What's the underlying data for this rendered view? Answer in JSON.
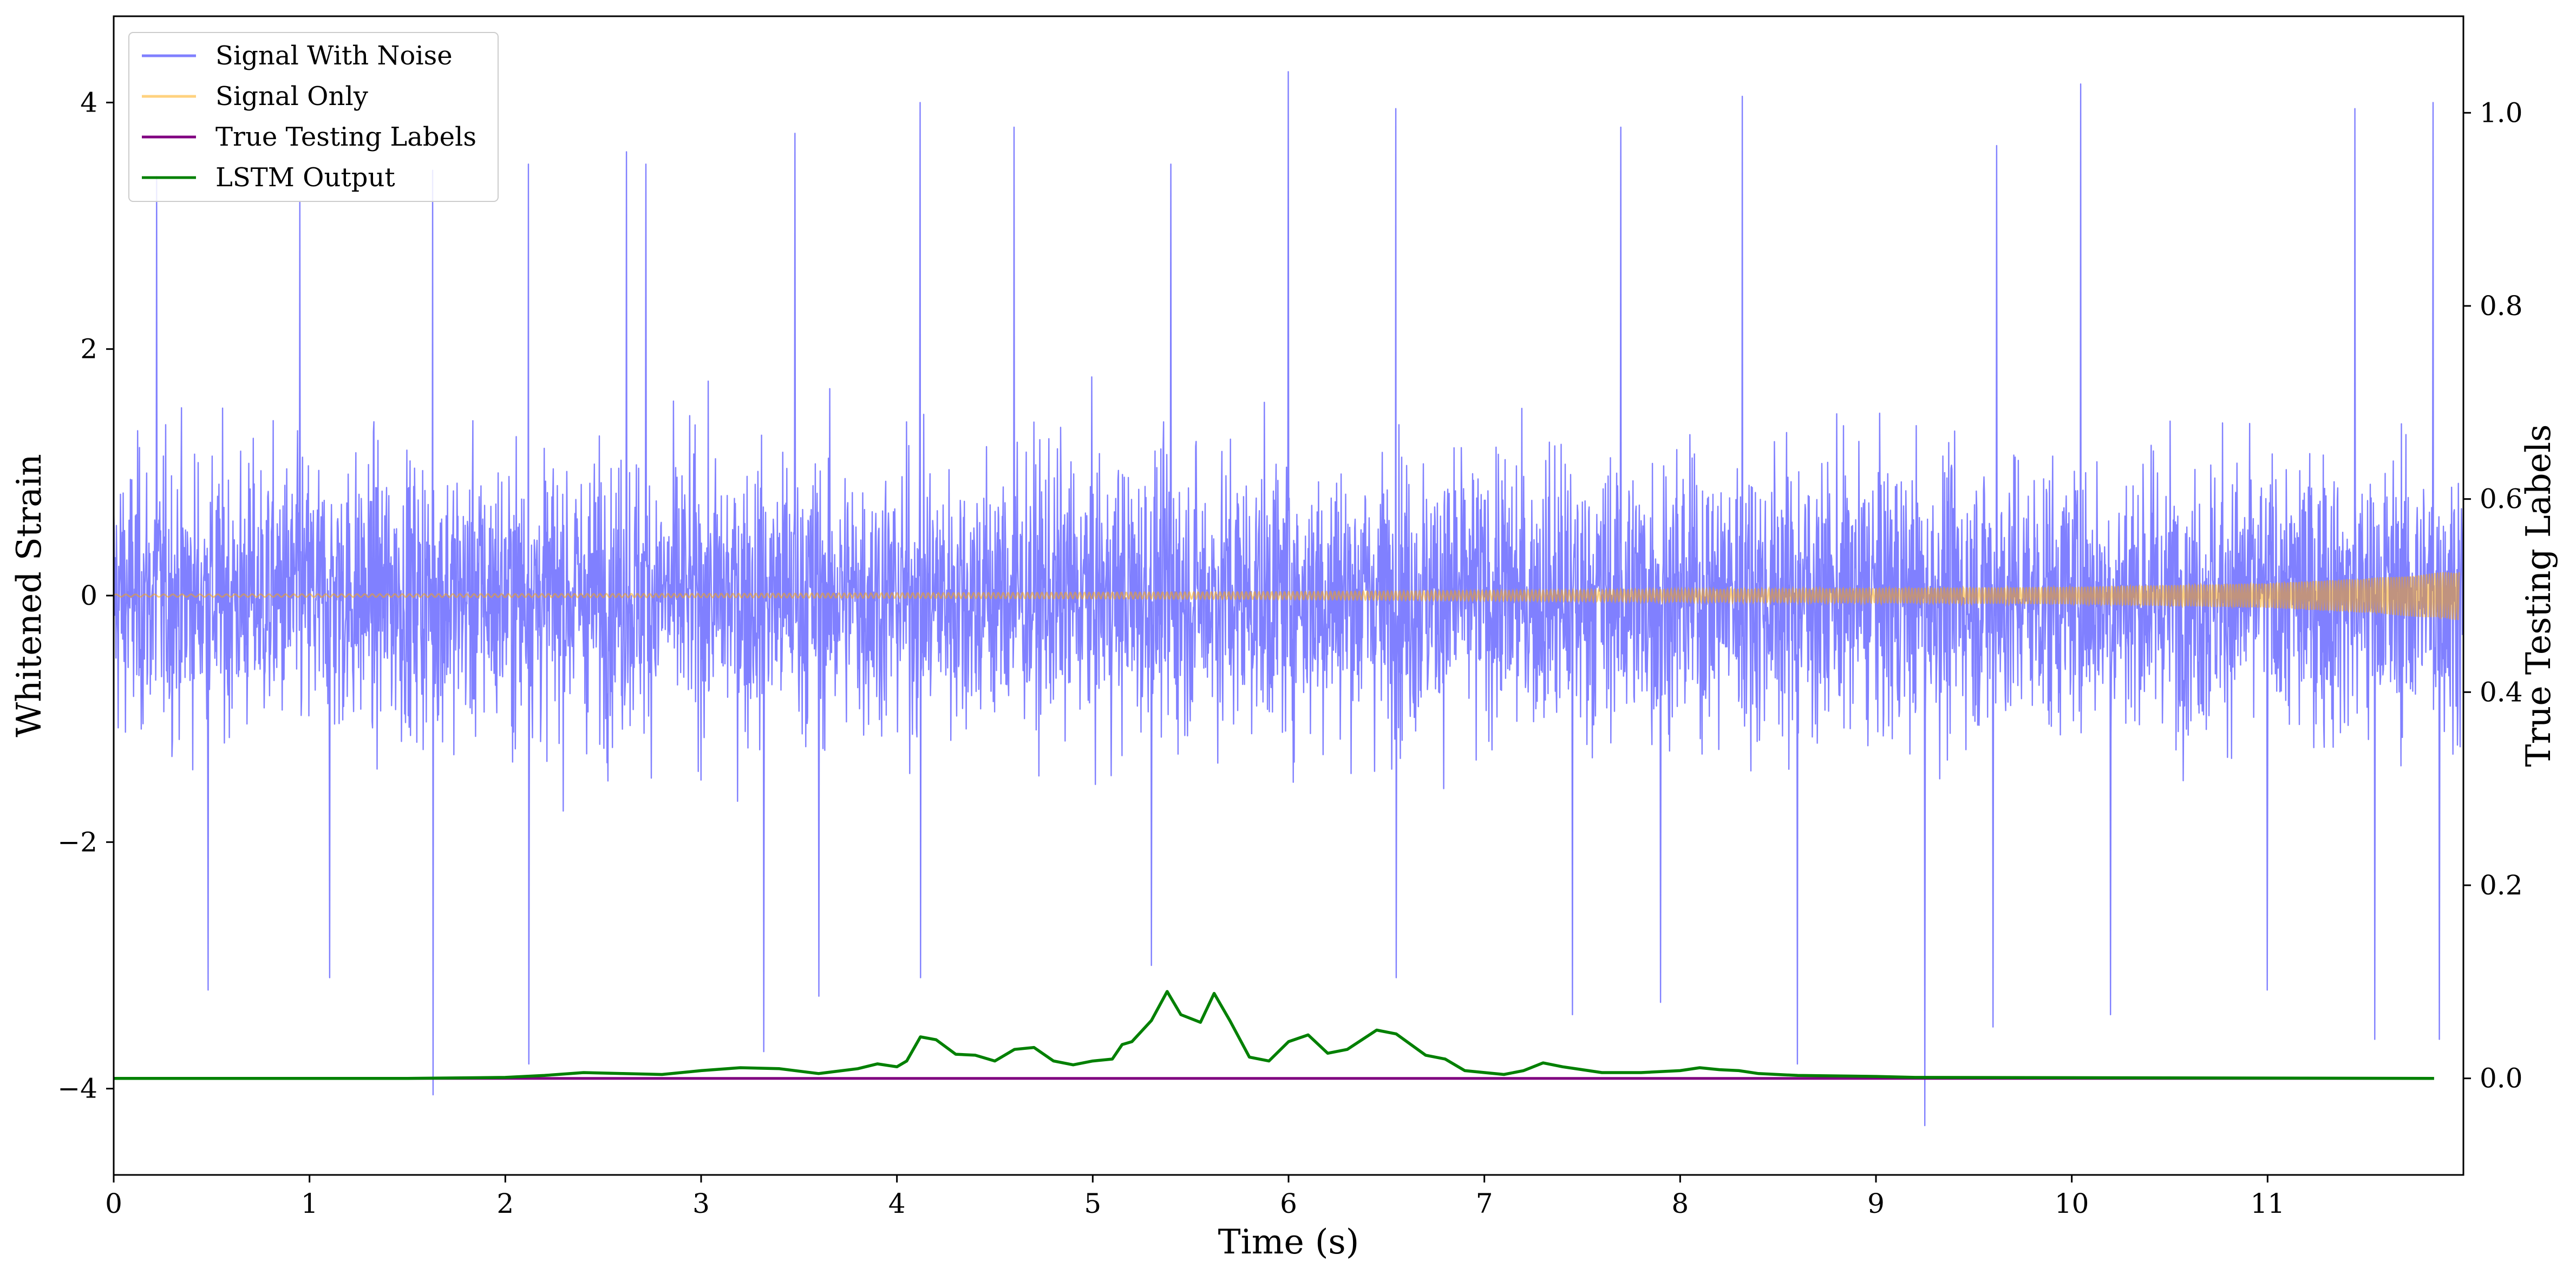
{
  "chart_data": {
    "type": "line",
    "xlabel": "Time (s)",
    "ylabel": "Whitened Strain",
    "y2label": "True Testing Labels",
    "xlim": [
      0,
      12
    ],
    "ylim": [
      -4.7,
      4.7
    ],
    "y2lim": [
      -0.1,
      1.1
    ],
    "xticks": [
      0,
      1,
      2,
      3,
      4,
      5,
      6,
      7,
      8,
      9,
      10,
      11
    ],
    "yticks": [
      -4,
      -2,
      0,
      2,
      4
    ],
    "y2ticks": [
      0.0,
      0.2,
      0.4,
      0.6,
      0.8,
      1.0
    ],
    "xtick_labels": [
      "0",
      "1",
      "2",
      "3",
      "4",
      "5",
      "6",
      "7",
      "8",
      "9",
      "10",
      "11"
    ],
    "ytick_labels": [
      "−4",
      "−2",
      "0",
      "2",
      "4"
    ],
    "y2tick_labels": [
      "0.0",
      "0.2",
      "0.4",
      "0.6",
      "0.8",
      "1.0"
    ],
    "grid": false,
    "legend_position": "top-left",
    "series": [
      {
        "name": "Signal With Noise",
        "axis": "left",
        "color": "#8080ff",
        "description_level": "noise amplitude ~ +/-1.5 typical, peaks to about +/-4.2",
        "peaks_max": [
          [
            0.22,
            3.4
          ],
          [
            0.95,
            3.2
          ],
          [
            1.63,
            3.45
          ],
          [
            2.12,
            3.5
          ],
          [
            2.62,
            3.6
          ],
          [
            2.72,
            3.5
          ],
          [
            3.48,
            3.75
          ],
          [
            4.12,
            4.0
          ],
          [
            4.6,
            3.8
          ],
          [
            5.4,
            3.5
          ],
          [
            6.0,
            4.25
          ],
          [
            6.55,
            3.95
          ],
          [
            7.7,
            3.8
          ],
          [
            8.32,
            4.05
          ],
          [
            9.62,
            3.65
          ],
          [
            10.05,
            4.15
          ],
          [
            11.45,
            3.95
          ],
          [
            11.85,
            4.0
          ]
        ],
        "peaks_min": [
          [
            0.48,
            -3.2
          ],
          [
            1.1,
            -3.1
          ],
          [
            1.63,
            -4.05
          ],
          [
            2.12,
            -3.8
          ],
          [
            3.32,
            -3.7
          ],
          [
            3.6,
            -3.25
          ],
          [
            4.12,
            -3.1
          ],
          [
            5.3,
            -3.0
          ],
          [
            6.55,
            -3.1
          ],
          [
            7.45,
            -3.4
          ],
          [
            7.9,
            -3.3
          ],
          [
            8.6,
            -3.8
          ],
          [
            9.25,
            -4.3
          ],
          [
            9.6,
            -3.5
          ],
          [
            10.2,
            -3.4
          ],
          [
            11.0,
            -3.2
          ],
          [
            11.55,
            -3.6
          ],
          [
            11.88,
            -3.6
          ]
        ]
      },
      {
        "name": "Signal Only",
        "axis": "left",
        "color": "#ffa500",
        "opacity": 0.5,
        "envelope": [
          [
            0,
            0.01
          ],
          [
            3,
            0.015
          ],
          [
            6,
            0.03
          ],
          [
            8,
            0.05
          ],
          [
            10,
            0.07
          ],
          [
            11,
            0.1
          ],
          [
            11.5,
            0.14
          ],
          [
            11.98,
            0.2
          ]
        ]
      },
      {
        "name": "True Testing Labels",
        "axis": "right",
        "color": "#800080",
        "x": [
          0,
          11.85
        ],
        "y": [
          0.0,
          0.0
        ]
      },
      {
        "name": "LSTM Output",
        "axis": "right",
        "color": "#008000",
        "x": [
          0,
          1.5,
          2.0,
          2.2,
          2.4,
          2.6,
          2.8,
          3.0,
          3.2,
          3.4,
          3.6,
          3.8,
          3.9,
          4.0,
          4.05,
          4.12,
          4.2,
          4.3,
          4.4,
          4.5,
          4.6,
          4.7,
          4.8,
          4.9,
          5.0,
          5.1,
          5.15,
          5.2,
          5.3,
          5.38,
          5.45,
          5.55,
          5.62,
          5.7,
          5.8,
          5.9,
          6.0,
          6.1,
          6.2,
          6.3,
          6.45,
          6.55,
          6.7,
          6.8,
          6.9,
          7.1,
          7.2,
          7.3,
          7.4,
          7.6,
          7.8,
          8.0,
          8.1,
          8.2,
          8.3,
          8.4,
          8.6,
          9.0,
          9.2,
          11.85
        ],
        "y": [
          0.0,
          0.0,
          0.001,
          0.003,
          0.006,
          0.005,
          0.004,
          0.008,
          0.011,
          0.01,
          0.005,
          0.01,
          0.015,
          0.012,
          0.018,
          0.043,
          0.04,
          0.025,
          0.024,
          0.018,
          0.03,
          0.032,
          0.018,
          0.014,
          0.018,
          0.02,
          0.035,
          0.038,
          0.06,
          0.09,
          0.066,
          0.058,
          0.088,
          0.06,
          0.022,
          0.018,
          0.038,
          0.045,
          0.026,
          0.03,
          0.05,
          0.046,
          0.024,
          0.02,
          0.008,
          0.004,
          0.008,
          0.016,
          0.012,
          0.006,
          0.006,
          0.008,
          0.011,
          0.009,
          0.008,
          0.005,
          0.003,
          0.002,
          0.001,
          0.0
        ]
      }
    ]
  }
}
